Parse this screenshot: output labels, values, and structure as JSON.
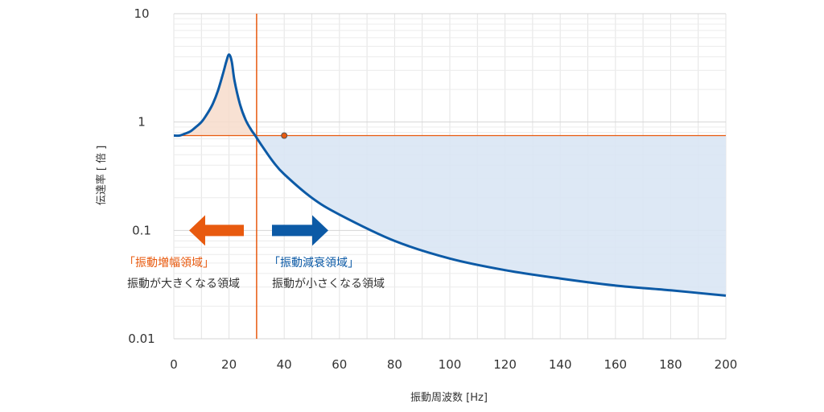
{
  "chart_data": {
    "type": "line",
    "xlabel": "振動周波数 [Hz]",
    "ylabel": "伝達率 [ 倍 ]",
    "x_ticks": [
      "0",
      "20",
      "40",
      "60",
      "80",
      "100",
      "120",
      "140",
      "160",
      "180",
      "200"
    ],
    "y_ticks": [
      "10",
      "1",
      "0.1",
      "0.01"
    ],
    "xlim": [
      0,
      200
    ],
    "ylim": [
      0.01,
      10
    ],
    "yscale": "log",
    "grid": true,
    "series": [
      {
        "color": "#0c5aa6",
        "x": [
          0,
          2,
          4,
          6,
          8,
          10,
          12,
          14,
          16,
          18,
          19,
          20,
          21,
          22,
          24,
          26,
          28,
          29.5,
          32,
          36,
          40,
          50,
          60,
          80,
          100,
          120,
          140,
          160,
          180,
          200
        ],
        "y": [
          0.75,
          0.75,
          0.78,
          0.82,
          0.9,
          1.0,
          1.18,
          1.45,
          1.95,
          2.9,
          3.6,
          4.2,
          3.6,
          2.4,
          1.45,
          1.05,
          0.85,
          0.75,
          0.6,
          0.43,
          0.33,
          0.2,
          0.14,
          0.08,
          0.055,
          0.043,
          0.036,
          0.031,
          0.028,
          0.025
        ]
      }
    ],
    "reference_line_y": 0.75,
    "crossover_x": 30,
    "marker_point": {
      "x": 40,
      "y": 0.75
    },
    "colors": {
      "curve": "#0c5aa6",
      "amplify": "#e85a0f",
      "attenuate": "#0c5aa6",
      "amplify_fill": "#f7dccb",
      "attenuate_fill": "#d9e6f4"
    }
  },
  "annotations": {
    "amplify_title": "「振動増幅領域」",
    "amplify_desc": "振動が大きくなる領域",
    "attenuate_title": "「振動減衰領域」",
    "attenuate_desc": "振動が小さくなる領域"
  },
  "icons": {
    "left_arrow": "arrow-left-icon",
    "right_arrow": "arrow-right-icon"
  }
}
